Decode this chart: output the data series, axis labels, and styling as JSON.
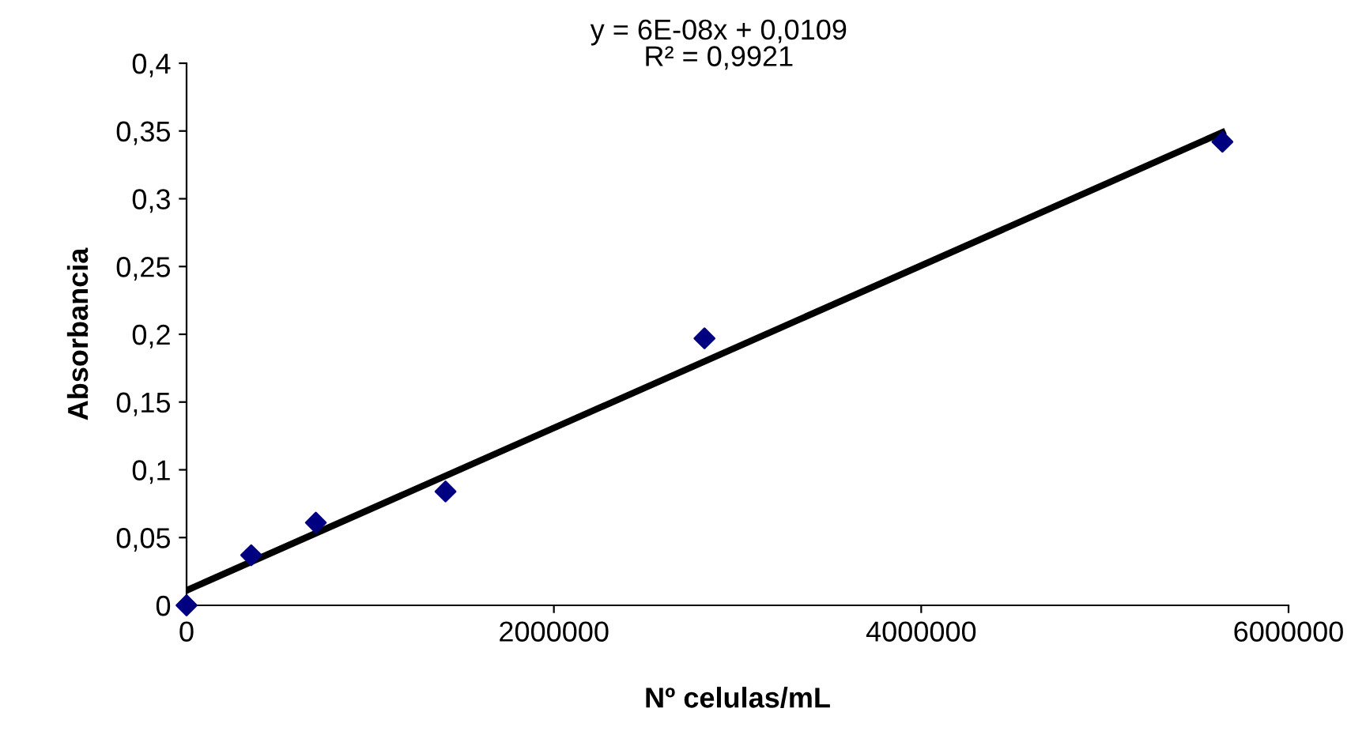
{
  "chart_data": {
    "type": "scatter",
    "xlabel": "Nº celulas/mL",
    "ylabel": "Absorbancia",
    "series": [
      {
        "color": "#000080",
        "marker": "diamond",
        "x": [
          0,
          352000,
          704000,
          1410000,
          2820000,
          5640000
        ],
        "values": [
          0,
          0.037,
          0.061,
          0.084,
          0.197,
          0.342
        ]
      },
      {
        "type": "line",
        "color": "#000000",
        "marker": "none",
        "x": [
          0,
          5640000
        ],
        "values": [
          0.011,
          0.349
        ]
      }
    ],
    "annotations": [
      "y = 6E-08x + 0,0109\nR² = 0,9921"
    ],
    "xlim": [
      0,
      6000000
    ],
    "xticks": [
      0,
      2000000,
      4000000,
      6000000
    ],
    "ylim": [
      0,
      0.4
    ],
    "yticks": [
      0,
      {
        "value": 0.05,
        "label": "0,05"
      },
      {
        "value": 0.1,
        "label": "0,1"
      },
      {
        "value": 0.15,
        "label": "0,15"
      },
      {
        "value": 0.2,
        "label": "0,2"
      },
      {
        "value": 0.25,
        "label": "0,25"
      },
      {
        "value": 0.3,
        "label": "0,3"
      },
      {
        "value": 0.35,
        "label": "0,35"
      },
      {
        "value": 0.4,
        "label": "0,4"
      }
    ],
    "grid": false,
    "legend": false
  }
}
